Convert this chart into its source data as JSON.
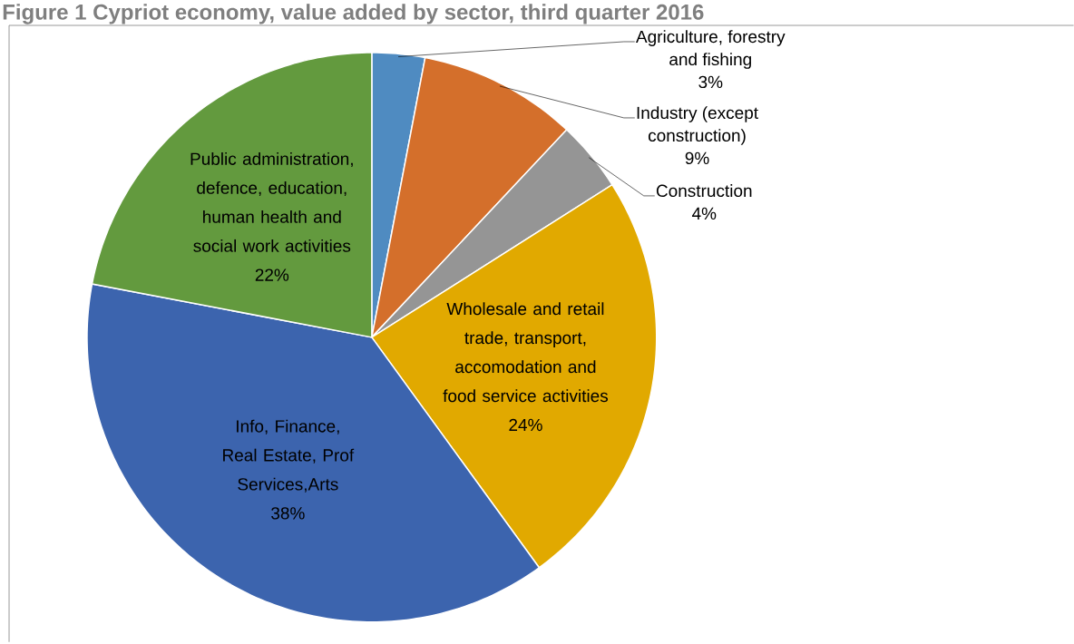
{
  "chart_data": {
    "type": "pie",
    "title": "Figure 1 Cypriot economy, value added by sector, third quarter 2016",
    "categories": [
      "Agriculture, forestry and fishing",
      "Industry (except construction)",
      "Construction",
      "Wholesale and retail trade, transport, accomodation and food service activities",
      "Info, Finance, Real Estate, Prof Services,Arts",
      "Public administration, defence, education, human health and social work activities"
    ],
    "values": [
      3,
      9,
      4,
      24,
      38,
      22
    ],
    "value_labels": [
      "3%",
      "9%",
      "4%",
      "24%",
      "38%",
      "22%"
    ],
    "colors": [
      "#4f8bc1",
      "#d46f2b",
      "#959595",
      "#e1a900",
      "#3c64ae",
      "#639a3e"
    ]
  }
}
